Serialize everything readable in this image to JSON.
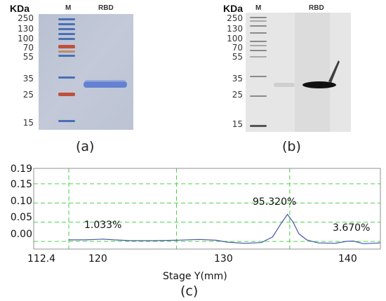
{
  "panel_a": {
    "unit": "KDa",
    "lane_labels": [
      "M",
      "RBD"
    ],
    "markers": [
      "250",
      "130",
      "100",
      "70",
      "55",
      "35",
      "25",
      "15"
    ],
    "caption": "(a)"
  },
  "panel_b": {
    "unit": "KDa",
    "lane_labels": [
      "M",
      "RBD"
    ],
    "markers": [
      "250",
      "130",
      "100",
      "70",
      "55",
      "35",
      "25",
      "15"
    ],
    "caption": "(b)"
  },
  "panel_c": {
    "caption": "(c)",
    "colors": {
      "trace": "#4455aa",
      "grid": "#33cc33"
    },
    "chart_data": {
      "type": "line",
      "xlabel": "Stage Y(mm)",
      "ylabel": "",
      "xlim": [
        112.4,
        143
      ],
      "ylim": [
        -0.02,
        0.19
      ],
      "x_ticks": [
        "112.4",
        "120",
        "130",
        "140"
      ],
      "y_ticks": [
        "0.19",
        "0.15",
        "0.10",
        "0.05",
        "0.00"
      ],
      "grid": true,
      "series": [
        {
          "x": [
            115.5,
            117,
            118.5,
            119.5,
            121,
            123,
            125,
            127,
            128.5,
            129.5,
            131,
            132.5,
            133.5,
            134.2,
            134.8,
            135.3,
            135.8,
            136.5,
            137.5,
            139,
            140,
            140.6,
            141.5,
            143
          ],
          "y": [
            0.004,
            0.004,
            0.006,
            0.004,
            0.002,
            0.002,
            0.003,
            0.005,
            0.003,
            -0.002,
            -0.005,
            -0.003,
            0.012,
            0.045,
            0.07,
            0.05,
            0.02,
            0.004,
            -0.004,
            -0.005,
            0.0,
            0.001,
            -0.006,
            -0.004
          ]
        }
      ],
      "annotations": [
        {
          "text": "1.033%",
          "x": 118.5,
          "y": 0.006
        },
        {
          "text": "95.320%",
          "x": 134.8,
          "y": 0.07
        },
        {
          "text": "3.670%",
          "x": 140.6,
          "y": 0.001
        }
      ]
    }
  }
}
